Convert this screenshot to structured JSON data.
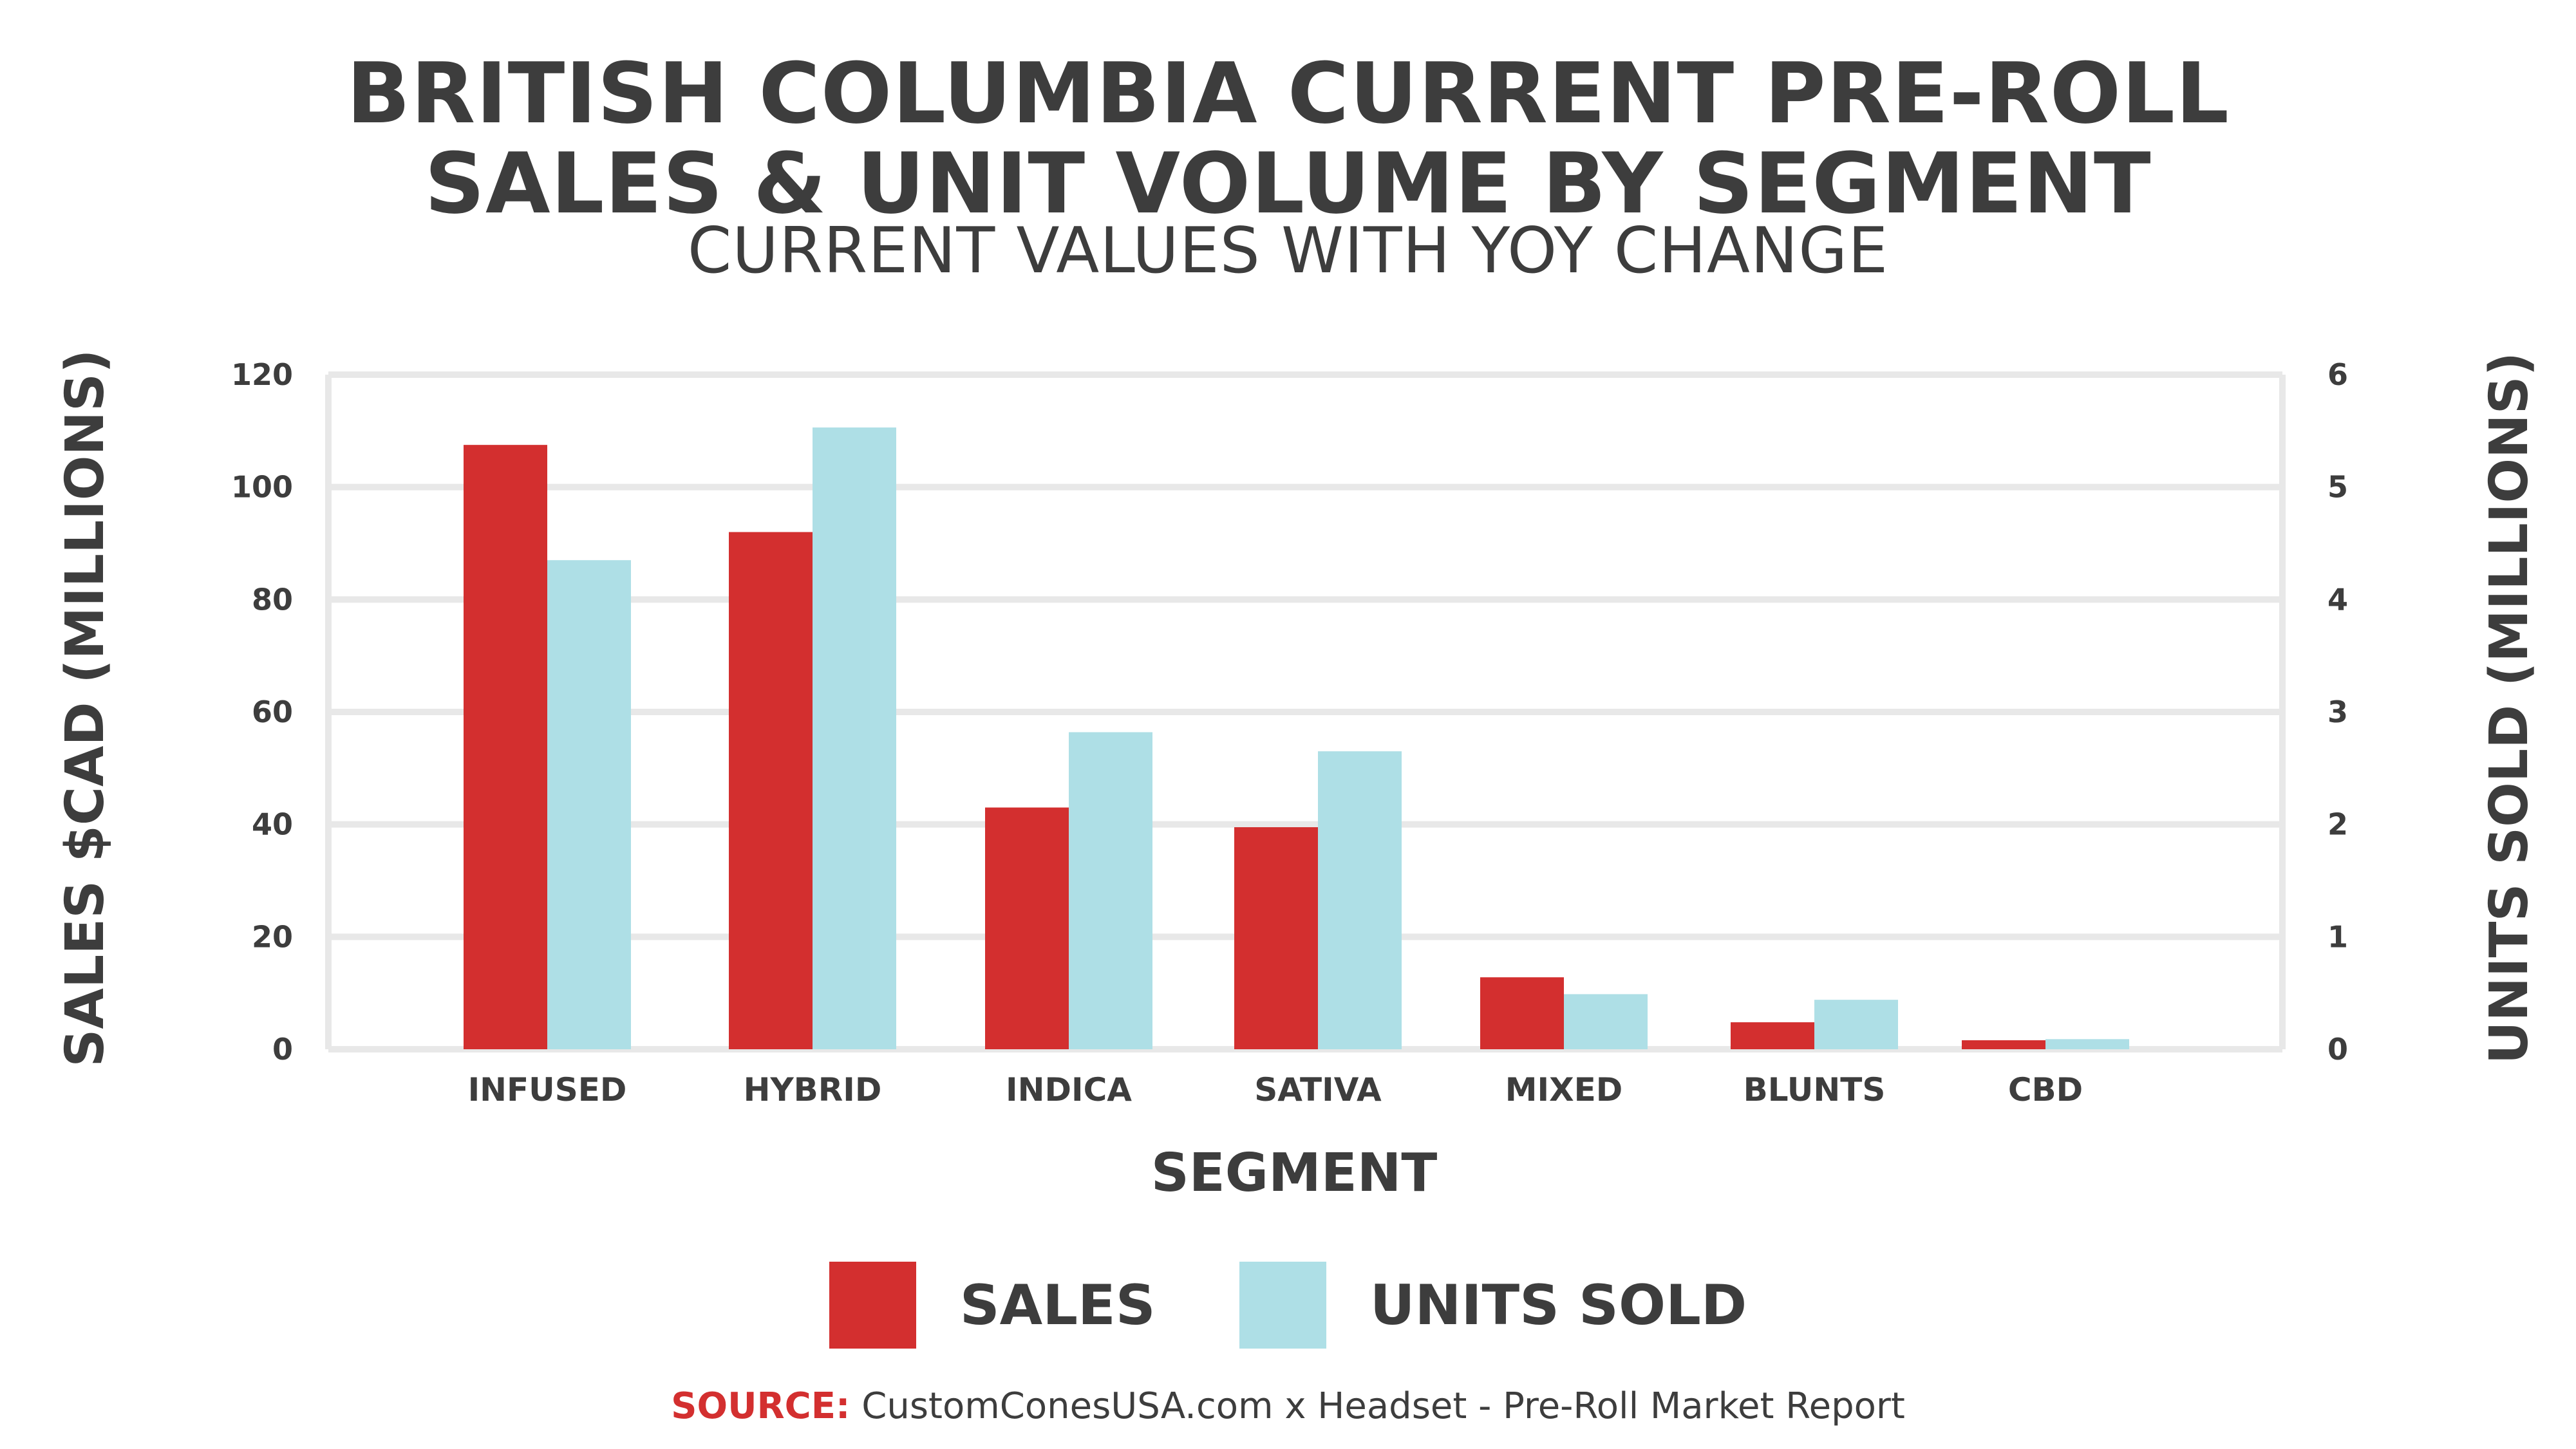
{
  "title_line1": "BRITISH COLUMBIA CURRENT PRE-ROLL",
  "title_line2": "SALES & UNIT VOLUME BY SEGMENT",
  "subtitle": "CURRENT VALUES WITH YOY CHANGE",
  "source_label": "SOURCE:",
  "source_text": " CustomConesUSA.com x Headset - Pre-Roll Market Report",
  "colors": {
    "sales": "#d32f2f",
    "units": "#aedfe6",
    "grid": "#e8e8e8",
    "text": "#3d3d3d"
  },
  "chart_data": {
    "type": "bar",
    "title": "BRITISH COLUMBIA CURRENT PRE-ROLL SALES & UNIT VOLUME BY SEGMENT",
    "subtitle": "CURRENT VALUES WITH YOY CHANGE",
    "xlabel": "SEGMENT",
    "ylabel": "SALES $CAD (MILLIONS)",
    "y2label": "UNITS SOLD (MILLIONS)",
    "ylim": [
      0,
      120
    ],
    "y2lim": [
      0,
      6
    ],
    "yticks": [
      0,
      20,
      40,
      60,
      80,
      100,
      120
    ],
    "y2ticks": [
      0,
      1,
      2,
      3,
      4,
      5,
      6
    ],
    "grid": true,
    "legend": "bottom",
    "categories": [
      "INFUSED",
      "HYBRID",
      "INDICA",
      "SATIVA",
      "MIXED",
      "BLUNTS",
      "CBD"
    ],
    "series": [
      {
        "name": "SALES",
        "axis": "left",
        "values": [
          107.5,
          92,
          43,
          39.5,
          12.8,
          4.8,
          1.6
        ]
      },
      {
        "name": "UNITS SOLD",
        "axis": "right",
        "values": [
          4.35,
          5.53,
          2.82,
          2.65,
          0.49,
          0.44,
          0.09
        ]
      }
    ]
  }
}
